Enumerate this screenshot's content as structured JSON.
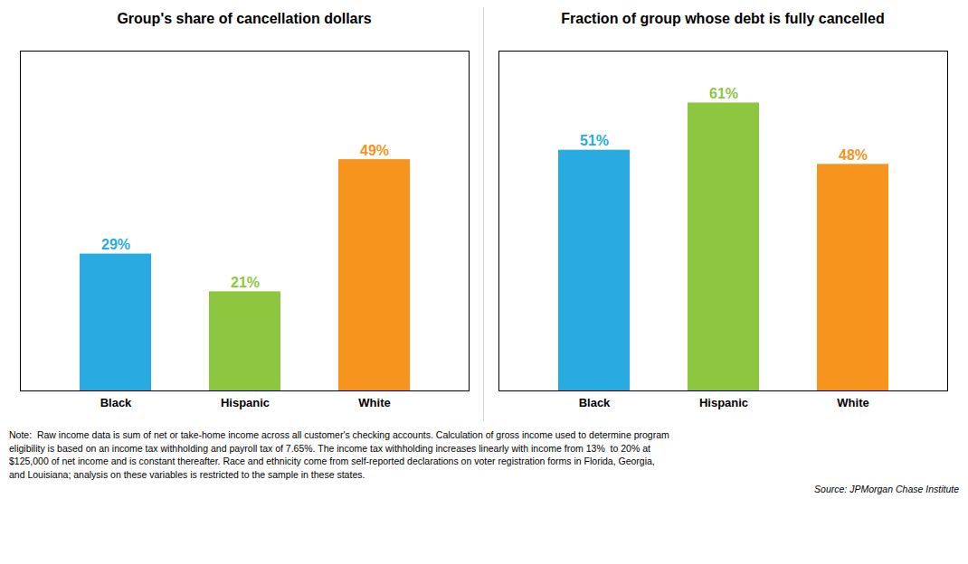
{
  "chart_data": [
    {
      "type": "bar",
      "title": "Group's share of cancellation dollars",
      "categories": [
        "Black",
        "Hispanic",
        "White"
      ],
      "values": [
        29,
        21,
        49
      ],
      "value_labels": [
        "29%",
        "21%",
        "49%"
      ],
      "colors": [
        "#29ABE2",
        "#8DC63F",
        "#F7941D"
      ],
      "ylim": [
        0,
        72
      ],
      "grid": false,
      "data_labels": true,
      "tick_labels": "x"
    },
    {
      "type": "bar",
      "title": "Fraction of group whose debt is fully cancelled",
      "categories": [
        "Black",
        "Hispanic",
        "White"
      ],
      "values": [
        51,
        61,
        48
      ],
      "value_labels": [
        "51%",
        "61%",
        "48%"
      ],
      "colors": [
        "#29ABE2",
        "#8DC63F",
        "#F7941D"
      ],
      "ylim": [
        0,
        72
      ],
      "grid": false,
      "data_labels": true,
      "tick_labels": "x"
    }
  ],
  "caption": "Note:  Raw income data is sum of net or take-home income across all customer's checking accounts. Calculation of gross income used to determine program\neligibility is based on an income tax withholding and payroll tax of 7.65%. The income tax withholding increases linearly with income from 13%  to 20% at\n$125,000 of net income and is constant thereafter. Race and ethnicity come from self-reported declarations on voter registration forms in Florida, Georgia,\nand Louisiana; analysis on these variables is restricted to the sample in these states.",
  "source": "Source: JPMorgan Chase Institute"
}
